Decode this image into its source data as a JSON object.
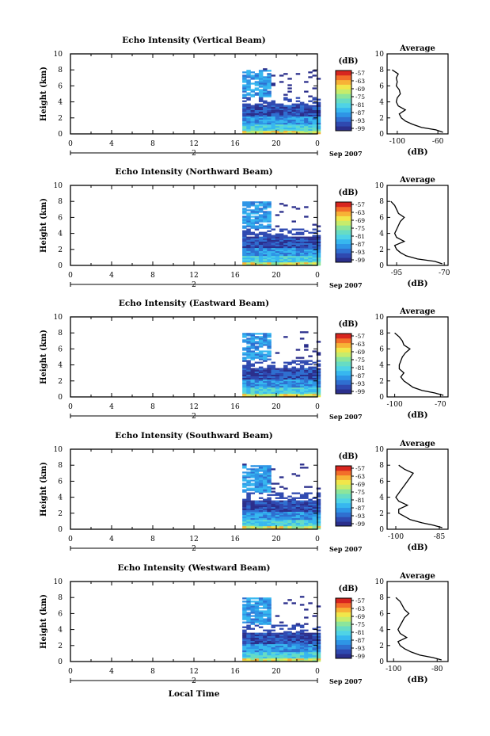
{
  "colors": {
    "scale": [
      "#2b2f8c",
      "#2f49b0",
      "#2f6fd0",
      "#2e95e6",
      "#37b7ef",
      "#4fd3e6",
      "#67dcc4",
      "#8ce59b",
      "#c7ec6b",
      "#f1e64a",
      "#f7b236",
      "#f36e2a",
      "#d8261f"
    ]
  },
  "chart_data": [
    {
      "type": "heatmap",
      "title": "Echo Intensity (Vertical Beam)",
      "ylabel": "Height (km)",
      "xlabel": "",
      "x_ticks": [
        "0",
        "4",
        "8",
        "12",
        "16",
        "20",
        "0"
      ],
      "y_ticks": [
        "0",
        "2",
        "4",
        "6",
        "8",
        "10"
      ],
      "xlim": [
        0,
        24
      ],
      "ylim": [
        0,
        10
      ],
      "date_marker": "2",
      "date_label": "Sep 2007",
      "data_start_hour": 16.7,
      "colorbar": {
        "unit": "(dB)",
        "ticks": [
          "-57",
          "-63",
          "-69",
          "-75",
          "-81",
          "-87",
          "-93",
          "-99"
        ]
      },
      "profile": {
        "title": "Average",
        "xlabel": "(dB)",
        "x_ticks": [
          "-100",
          "-60"
        ],
        "xlim": [
          -110,
          -50
        ],
        "y_ticks": [
          "0",
          "2",
          "4",
          "6",
          "8",
          "10"
        ],
        "ylim": [
          0,
          10
        ],
        "heights": [
          0.2,
          0.5,
          0.8,
          1.2,
          1.6,
          2.0,
          2.5,
          3.0,
          3.5,
          4.0,
          4.5,
          5.0,
          5.5,
          6.0,
          6.5,
          7.0,
          7.5,
          8.0
        ],
        "values": [
          -55,
          -62,
          -76,
          -85,
          -92,
          -96,
          -98,
          -92,
          -99,
          -101,
          -100,
          -97,
          -98,
          -101,
          -100,
          -101,
          -99,
          -105
        ]
      }
    },
    {
      "type": "heatmap",
      "title": "Echo Intensity (Northward Beam)",
      "ylabel": "Height (km)",
      "xlabel": "",
      "x_ticks": [
        "0",
        "4",
        "8",
        "12",
        "16",
        "20",
        "0"
      ],
      "y_ticks": [
        "0",
        "2",
        "4",
        "6",
        "8",
        "10"
      ],
      "xlim": [
        0,
        24
      ],
      "ylim": [
        0,
        10
      ],
      "date_marker": "2",
      "date_label": "Sep 2007",
      "data_start_hour": 16.7,
      "colorbar": {
        "unit": "(dB)",
        "ticks": [
          "-57",
          "-63",
          "-69",
          "-75",
          "-81",
          "-87",
          "-93",
          "-99"
        ]
      },
      "profile": {
        "title": "Average",
        "xlabel": "(dB)",
        "x_ticks": [
          "-95",
          "-70"
        ],
        "xlim": [
          -100,
          -68
        ],
        "y_ticks": [
          "0",
          "2",
          "4",
          "6",
          "8",
          "10"
        ],
        "ylim": [
          0,
          10
        ],
        "heights": [
          0.2,
          0.5,
          0.8,
          1.2,
          1.6,
          2.0,
          2.5,
          3.0,
          3.5,
          4.0,
          4.5,
          5.0,
          5.5,
          6.0,
          6.5,
          7.0,
          7.5,
          8.0
        ],
        "values": [
          -71,
          -75,
          -84,
          -90,
          -93,
          -95,
          -96,
          -91,
          -95,
          -96,
          -95,
          -94,
          -93,
          -91,
          -94,
          -95,
          -96,
          -98
        ]
      }
    },
    {
      "type": "heatmap",
      "title": "Echo Intensity (Eastward Beam)",
      "ylabel": "Height (km)",
      "xlabel": "",
      "x_ticks": [
        "0",
        "4",
        "8",
        "12",
        "16",
        "20",
        "0"
      ],
      "y_ticks": [
        "0",
        "2",
        "4",
        "6",
        "8",
        "10"
      ],
      "xlim": [
        0,
        24
      ],
      "ylim": [
        0,
        10
      ],
      "date_marker": "2",
      "date_label": "Sep 2007",
      "data_start_hour": 16.7,
      "colorbar": {
        "unit": "(dB)",
        "ticks": [
          "-57",
          "-63",
          "-69",
          "-75",
          "-81",
          "-87",
          "-93",
          "-99"
        ]
      },
      "profile": {
        "title": "Average",
        "xlabel": "(dB)",
        "x_ticks": [
          "-100",
          "-70"
        ],
        "xlim": [
          -105,
          -65
        ],
        "y_ticks": [
          "0",
          "2",
          "4",
          "6",
          "8",
          "10"
        ],
        "ylim": [
          0,
          10
        ],
        "heights": [
          0.2,
          0.5,
          0.8,
          1.2,
          1.6,
          2.0,
          2.5,
          3.0,
          3.5,
          4.0,
          4.5,
          5.0,
          5.5,
          6.0,
          6.5,
          7.0,
          7.5,
          8.0
        ],
        "values": [
          -68,
          -74,
          -82,
          -88,
          -91,
          -94,
          -96,
          -94,
          -97,
          -97,
          -96,
          -95,
          -93,
          -90,
          -94,
          -95,
          -97,
          -100
        ]
      }
    },
    {
      "type": "heatmap",
      "title": "Echo Intensity (Southward Beam)",
      "ylabel": "Height (km)",
      "xlabel": "",
      "x_ticks": [
        "0",
        "4",
        "8",
        "12",
        "16",
        "20",
        "0"
      ],
      "y_ticks": [
        "0",
        "2",
        "4",
        "6",
        "8",
        "10"
      ],
      "xlim": [
        0,
        24
      ],
      "ylim": [
        0,
        10
      ],
      "date_marker": "2",
      "date_label": "Sep 2007",
      "data_start_hour": 16.7,
      "colorbar": {
        "unit": "(dB)",
        "ticks": [
          "-57",
          "-63",
          "-69",
          "-75",
          "-81",
          "-87",
          "-93",
          "-99"
        ]
      },
      "profile": {
        "title": "Average",
        "xlabel": "(dB)",
        "x_ticks": [
          "-100",
          "-85"
        ],
        "xlim": [
          -103,
          -82
        ],
        "y_ticks": [
          "0",
          "2",
          "4",
          "6",
          "8",
          "10"
        ],
        "ylim": [
          0,
          10
        ],
        "heights": [
          0.2,
          0.5,
          0.8,
          1.2,
          1.6,
          2.0,
          2.5,
          3.0,
          3.5,
          4.0,
          4.5,
          5.0,
          5.5,
          6.0,
          6.5,
          7.0,
          7.5,
          8.0
        ],
        "values": [
          -84,
          -87,
          -91,
          -95,
          -97,
          -99,
          -99,
          -96,
          -99,
          -100,
          -99,
          -98,
          -97,
          -96,
          -95,
          -94,
          -97,
          -99
        ]
      }
    },
    {
      "type": "heatmap",
      "title": "Echo Intensity (Westward Beam)",
      "ylabel": "Height (km)",
      "xlabel": "Local Time",
      "x_ticks": [
        "0",
        "4",
        "8",
        "12",
        "16",
        "20",
        "0"
      ],
      "y_ticks": [
        "0",
        "2",
        "4",
        "6",
        "8",
        "10"
      ],
      "xlim": [
        0,
        24
      ],
      "ylim": [
        0,
        10
      ],
      "date_marker": "2",
      "date_label": "Sep 2007",
      "data_start_hour": 16.7,
      "colorbar": {
        "unit": "(dB)",
        "ticks": [
          "-57",
          "-63",
          "-69",
          "-75",
          "-81",
          "-87",
          "-93",
          "-99"
        ]
      },
      "profile": {
        "title": "Average",
        "xlabel": "(dB)",
        "x_ticks": [
          "-100",
          "-80"
        ],
        "xlim": [
          -103,
          -75
        ],
        "y_ticks": [
          "0",
          "2",
          "4",
          "6",
          "8",
          "10"
        ],
        "ylim": [
          0,
          10
        ],
        "heights": [
          0.2,
          0.5,
          0.8,
          1.2,
          1.6,
          2.0,
          2.5,
          3.0,
          3.5,
          4.0,
          4.5,
          5.0,
          5.5,
          6.0,
          6.5,
          7.0,
          7.5,
          8.0
        ],
        "values": [
          -78,
          -82,
          -88,
          -92,
          -95,
          -97,
          -98,
          -94,
          -97,
          -98,
          -97,
          -96,
          -95,
          -93,
          -95,
          -96,
          -97,
          -99
        ]
      }
    }
  ]
}
